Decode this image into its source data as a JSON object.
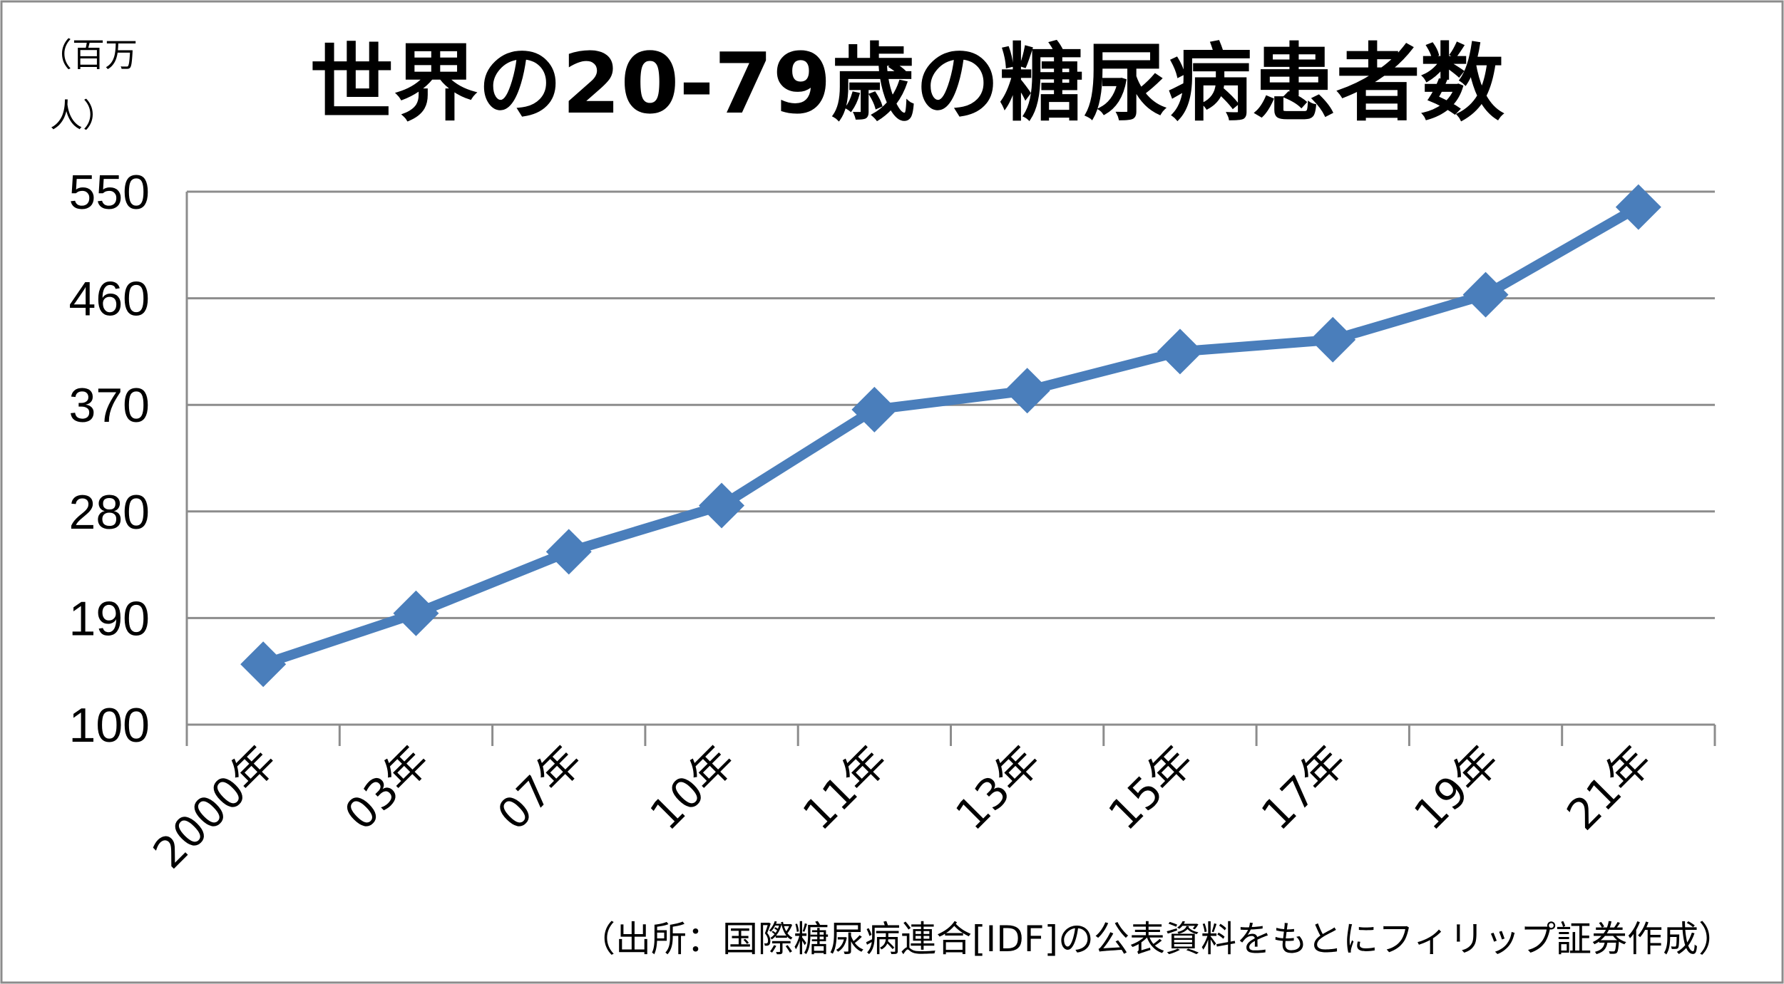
{
  "chart_data": {
    "type": "line",
    "title": "世界の20-79歳の糖尿病患者数",
    "unit_label_line1": "（百万",
    "unit_label_line2": "人）",
    "source": "（出所：国際糖尿病連合[IDF]の公表資料をもとにフィリップ証券作成）",
    "categories": [
      "2000年",
      "03年",
      "07年",
      "10年",
      "11年",
      "13年",
      "15年",
      "17年",
      "19年",
      "21年"
    ],
    "series": [
      {
        "values": [
          151,
          194,
          246,
          285,
          366,
          382,
          415,
          425,
          463,
          537
        ],
        "color": "#4a7ebb",
        "marker": "diamond"
      }
    ],
    "ylim": [
      100,
      550
    ],
    "yticks": [
      100,
      190,
      280,
      370,
      460,
      550
    ],
    "grid": true,
    "legend": "none"
  }
}
